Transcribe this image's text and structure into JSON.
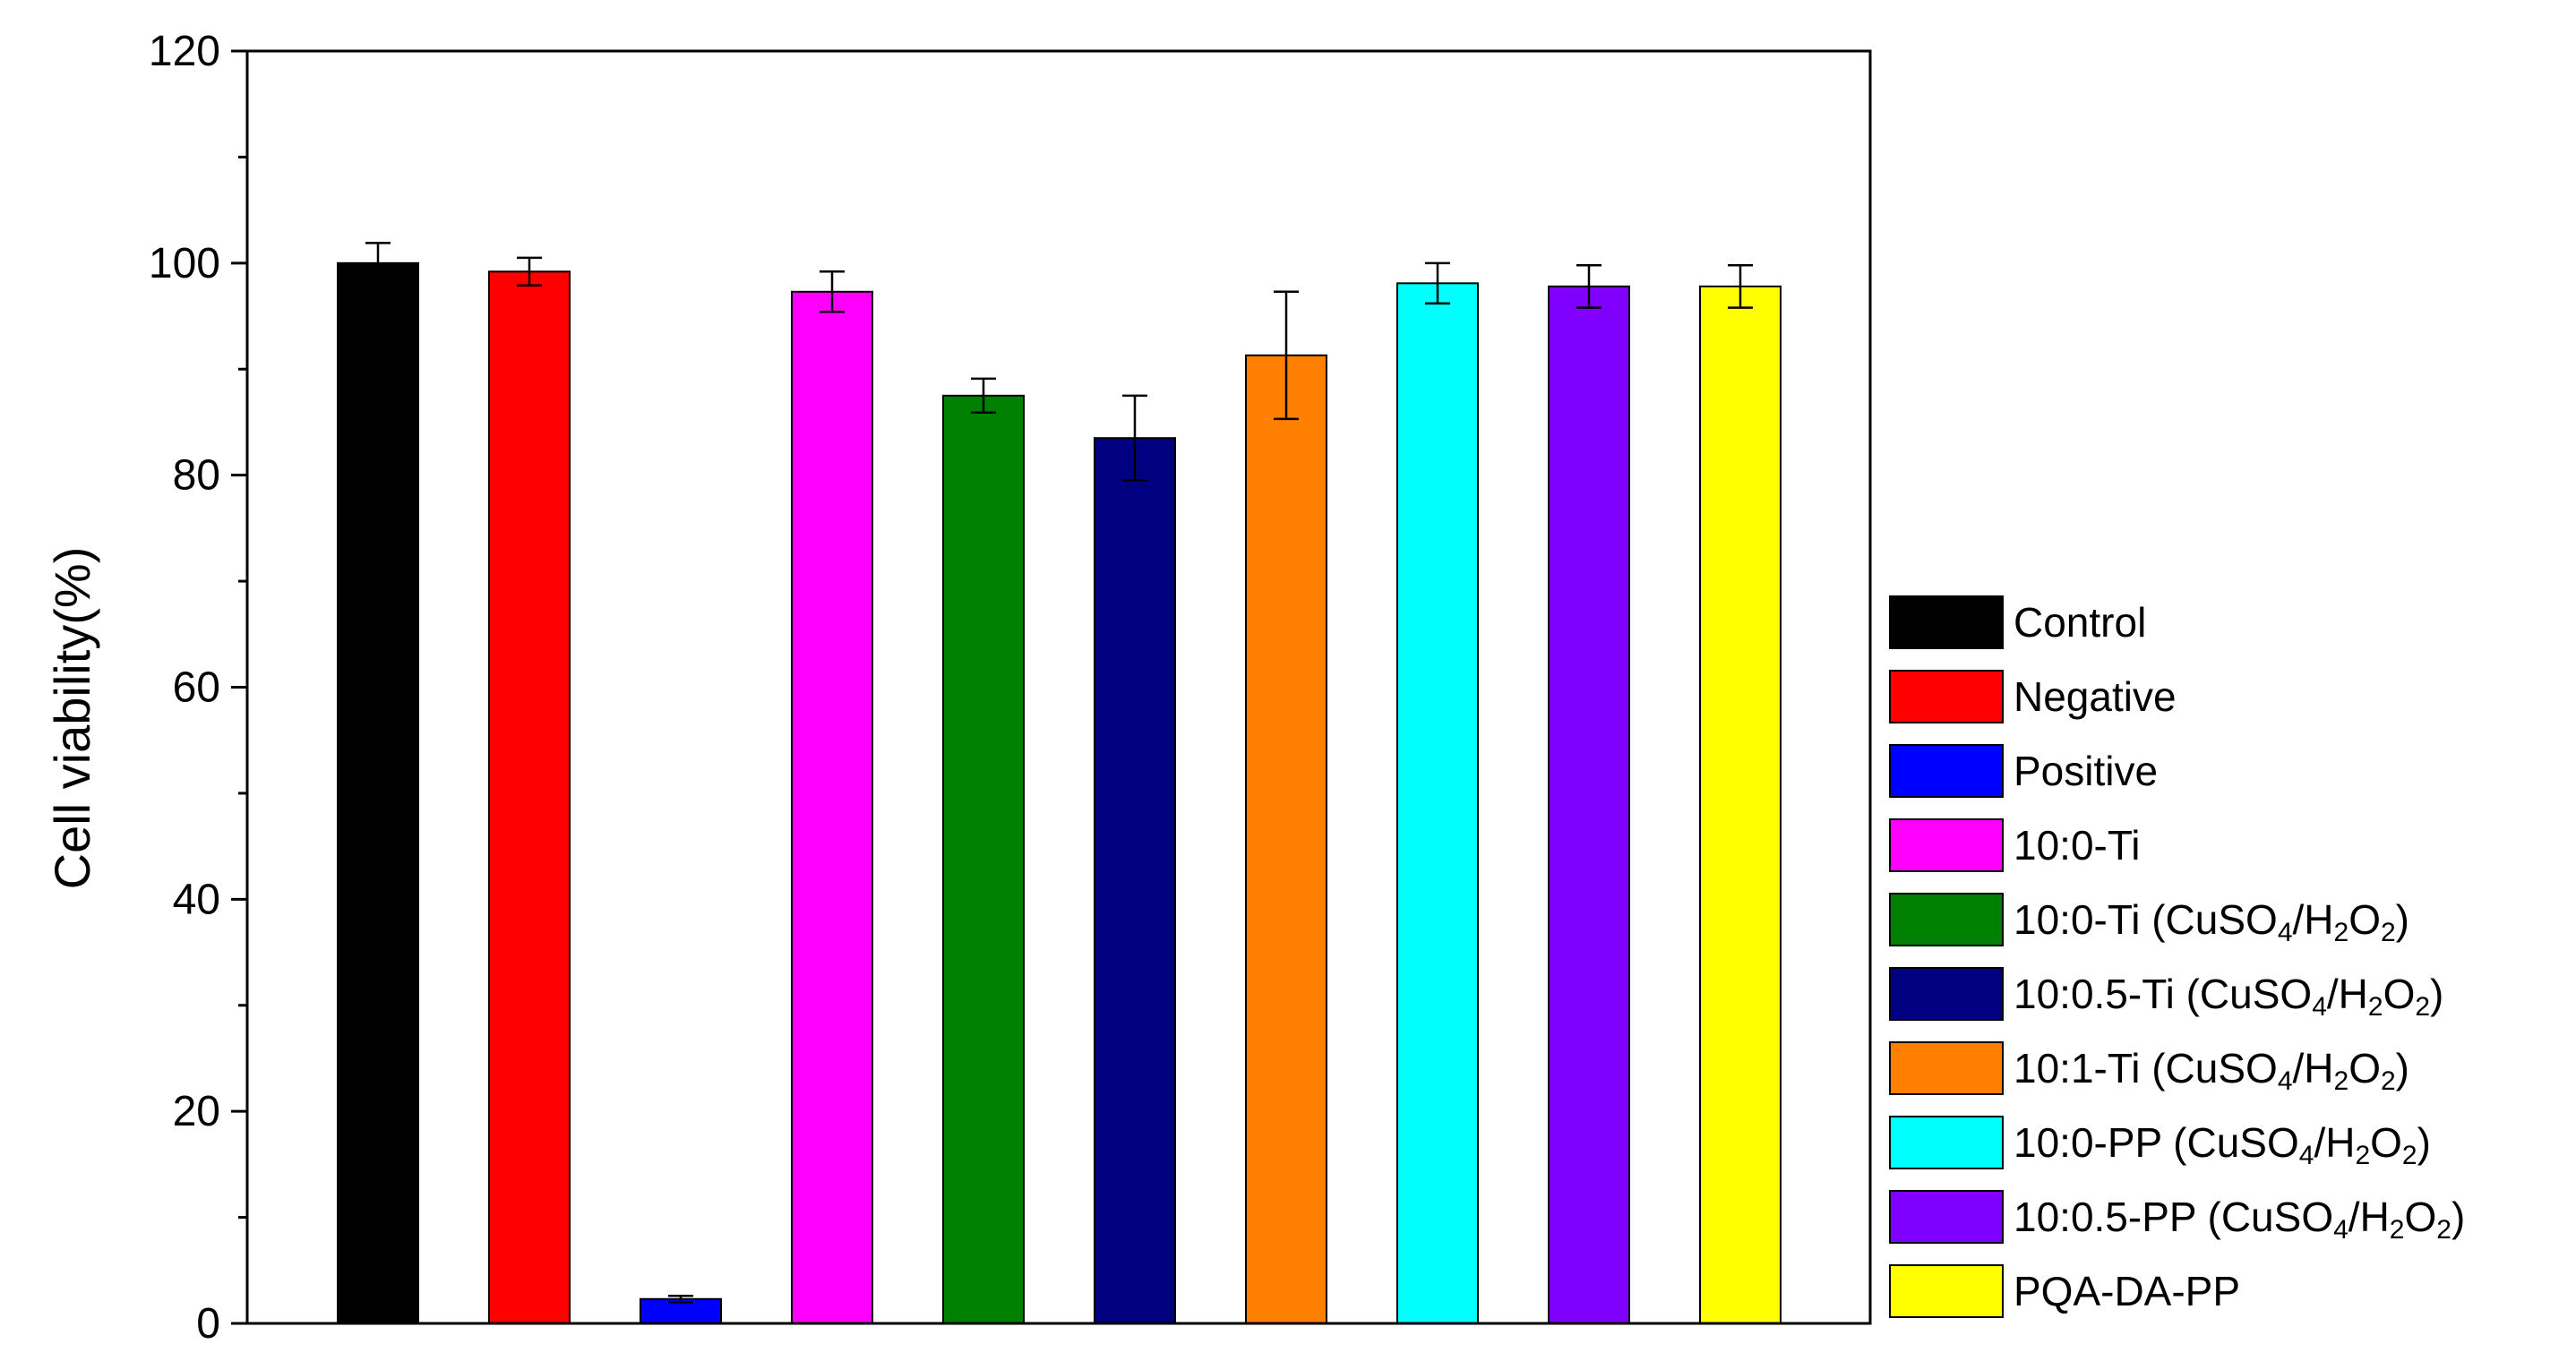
{
  "chart_data": {
    "type": "bar",
    "title": "",
    "xlabel": "",
    "ylabel": "Cell viability(%)",
    "ylim": [
      0,
      120
    ],
    "yticks": [
      0,
      20,
      40,
      60,
      80,
      100,
      120
    ],
    "grid": false,
    "legend_position": "right",
    "categories": [
      "Control",
      "Negative",
      "Positive",
      "10:0-Ti",
      "10:0-Ti (CuSO4/H2O2)",
      "10:0.5-Ti (CuSO4/H2O2)",
      "10:1-Ti (CuSO4/H2O2)",
      "10:0-PP (CuSO4/H2O2)",
      "10:0.5-PP (CuSO4/H2O2)",
      "PQA-DA-PP"
    ],
    "values": [
      100,
      99.2,
      2.3,
      97.3,
      87.5,
      83.5,
      91.3,
      98.1,
      97.8,
      97.8
    ],
    "errors": [
      1.9,
      1.3,
      0.3,
      1.9,
      1.6,
      4.0,
      6.0,
      1.9,
      2.0,
      2.0
    ],
    "colors": [
      "#000000",
      "#ff0000",
      "#0000ff",
      "#ff00ff",
      "#008000",
      "#000080",
      "#ff8000",
      "#00ffff",
      "#8000ff",
      "#ffff00"
    ],
    "legend": [
      {
        "main": "Control"
      },
      {
        "main": "Negative"
      },
      {
        "main": "Positive"
      },
      {
        "main": "10:0-Ti"
      },
      {
        "main": "10:0-Ti (CuSO",
        "sub1": "4",
        "mid": "/H",
        "sub2": "2",
        "mid2": "O",
        "sub3": "2",
        "end": ")"
      },
      {
        "main": "10:0.5-Ti (CuSO",
        "sub1": "4",
        "mid": "/H",
        "sub2": "2",
        "mid2": "O",
        "sub3": "2",
        "end": ")"
      },
      {
        "main": "10:1-Ti (CuSO",
        "sub1": "4",
        "mid": "/H",
        "sub2": "2",
        "mid2": "O",
        "sub3": "2",
        "end": ")"
      },
      {
        "main": "10:0-PP (CuSO",
        "sub1": "4",
        "mid": "/H",
        "sub2": "2",
        "mid2": "O",
        "sub3": "2",
        "end": ")"
      },
      {
        "main": "10:0.5-PP (CuSO",
        "sub1": "4",
        "mid": "/H",
        "sub2": "2",
        "mid2": "O",
        "sub3": "2",
        "end": ")"
      },
      {
        "main": "PQA-DA-PP"
      }
    ]
  }
}
